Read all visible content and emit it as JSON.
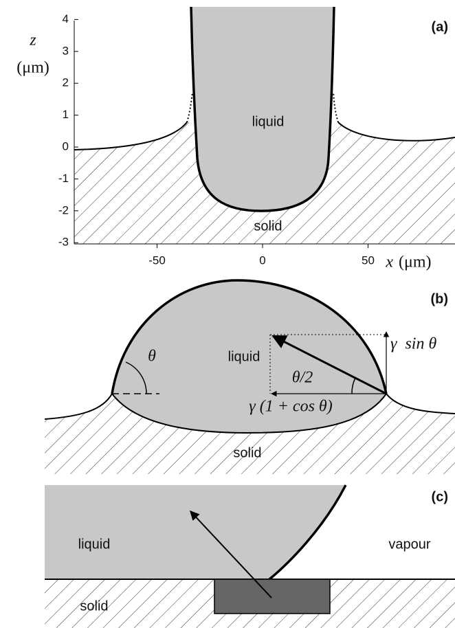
{
  "panels": [
    {
      "label": "(a)",
      "z_label": "z",
      "z_unit": "(μm)",
      "x_label": "x",
      "x_unit": "(μm)",
      "y_ticks": [
        4,
        3,
        2,
        1,
        0,
        -1,
        -2,
        -3
      ],
      "x_ticks": [
        -50,
        0,
        50
      ],
      "liquid": "liquid",
      "solid": "solid"
    },
    {
      "label": "(b)",
      "liquid": "liquid",
      "solid": "solid",
      "angle": "θ",
      "half_angle": "θ/2",
      "vertical_force": "γ  sin θ",
      "horizontal_force": "γ (1 + cos θ)"
    },
    {
      "label": "(c)",
      "liquid": "liquid",
      "vapour": "vapour",
      "solid": "solid"
    }
  ]
}
